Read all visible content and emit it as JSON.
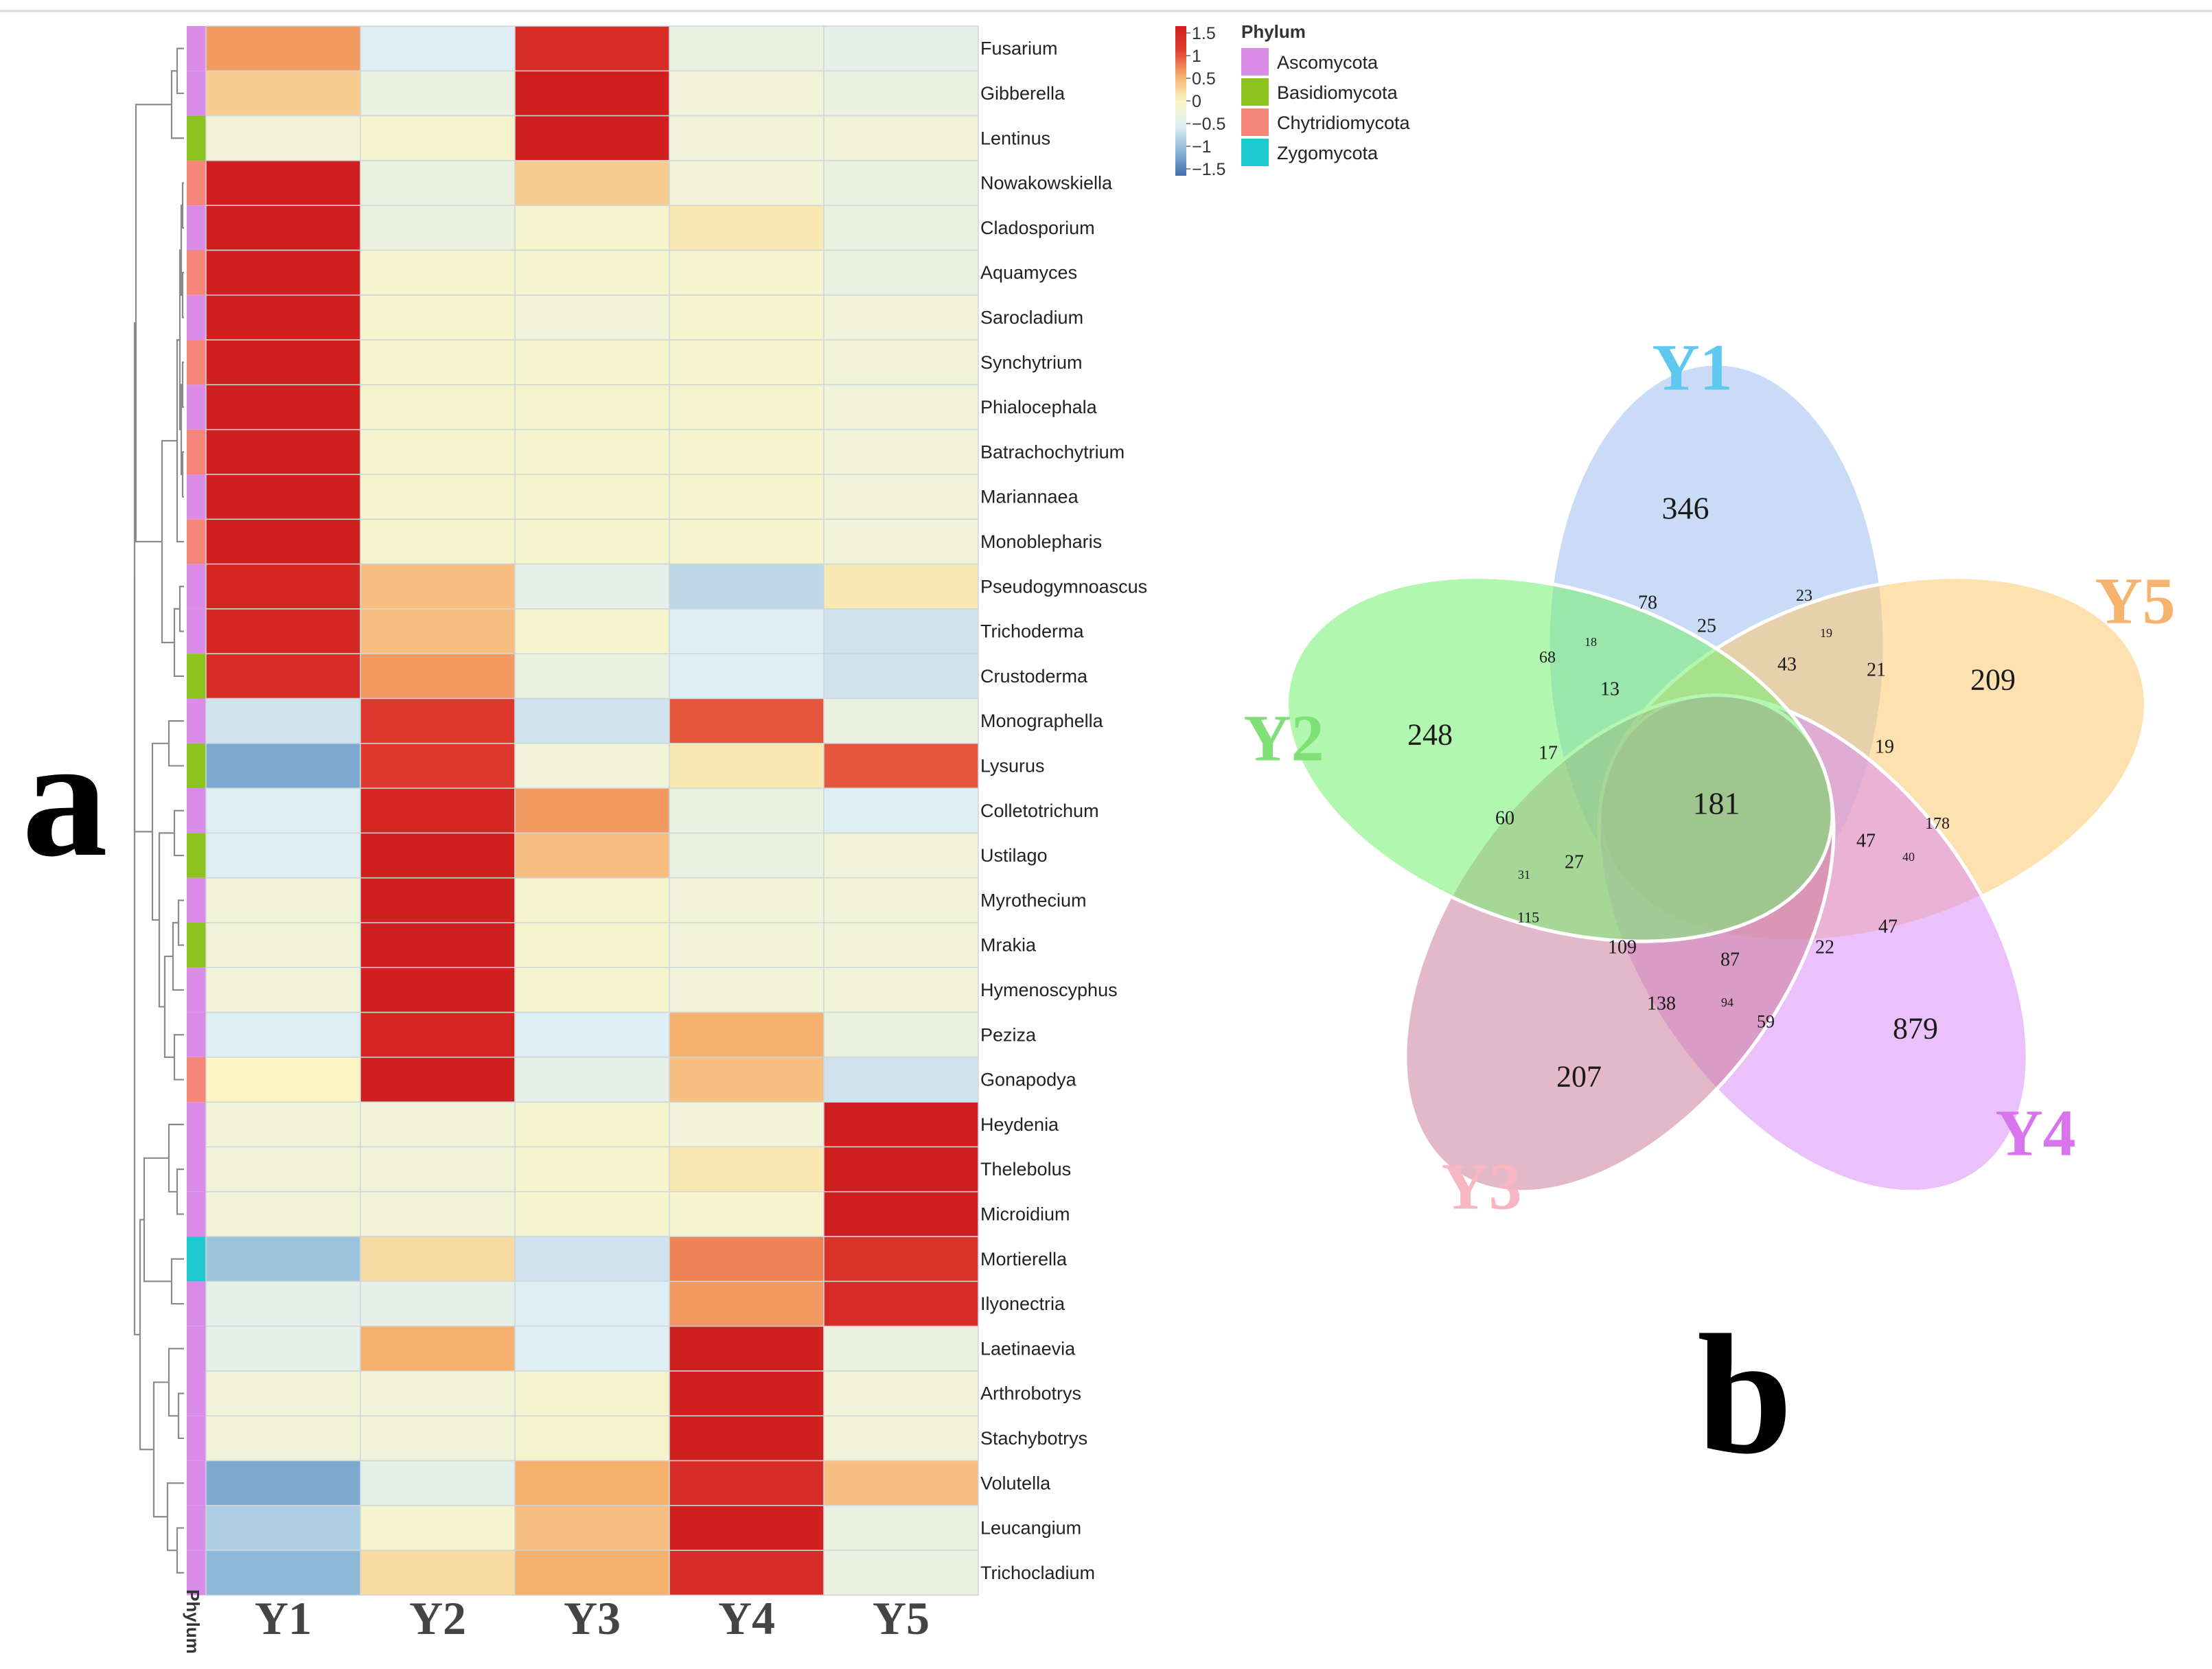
{
  "panels": {
    "a": "a",
    "b": "b"
  },
  "chart_data": [
    {
      "type": "heatmap",
      "title": "",
      "columns": [
        "Y1",
        "Y2",
        "Y3",
        "Y4",
        "Y5"
      ],
      "row_side_label": "Phylum",
      "rows": [
        {
          "genus": "Fusarium",
          "phylum": "Ascomycota",
          "values": [
            0.6,
            -0.5,
            1.3,
            -0.3,
            -0.4
          ]
        },
        {
          "genus": "Gibberella",
          "phylum": "Ascomycota",
          "values": [
            0.3,
            -0.3,
            1.5,
            -0.2,
            -0.3
          ]
        },
        {
          "genus": "Lentinus",
          "phylum": "Basidiomycota",
          "values": [
            -0.2,
            -0.1,
            1.5,
            -0.2,
            -0.2
          ]
        },
        {
          "genus": "Nowakowskiella",
          "phylum": "Chytridiomycota",
          "values": [
            1.5,
            -0.3,
            0.3,
            -0.2,
            -0.3
          ]
        },
        {
          "genus": "Cladosporium",
          "phylum": "Ascomycota",
          "values": [
            1.5,
            -0.3,
            -0.1,
            0.1,
            -0.3
          ]
        },
        {
          "genus": "Aquamyces",
          "phylum": "Chytridiomycota",
          "values": [
            1.5,
            -0.1,
            -0.1,
            -0.1,
            -0.3
          ]
        },
        {
          "genus": "Sarocladium",
          "phylum": "Ascomycota",
          "values": [
            1.5,
            -0.1,
            -0.2,
            -0.1,
            -0.2
          ]
        },
        {
          "genus": "Synchytrium",
          "phylum": "Chytridiomycota",
          "values": [
            1.5,
            -0.1,
            -0.1,
            -0.1,
            -0.2
          ]
        },
        {
          "genus": "Phialocephala",
          "phylum": "Ascomycota",
          "values": [
            1.5,
            -0.1,
            -0.1,
            -0.1,
            -0.2
          ]
        },
        {
          "genus": "Batrachochytrium",
          "phylum": "Chytridiomycota",
          "values": [
            1.5,
            -0.1,
            -0.1,
            -0.1,
            -0.2
          ]
        },
        {
          "genus": "Mariannaea",
          "phylum": "Ascomycota",
          "values": [
            1.5,
            -0.1,
            -0.1,
            -0.1,
            -0.2
          ]
        },
        {
          "genus": "Monoblepharis",
          "phylum": "Chytridiomycota",
          "values": [
            1.5,
            -0.1,
            -0.1,
            -0.1,
            -0.2
          ]
        },
        {
          "genus": "Pseudogymnoascus",
          "phylum": "Ascomycota",
          "values": [
            1.4,
            0.4,
            -0.4,
            -0.7,
            0.1
          ]
        },
        {
          "genus": "Trichoderma",
          "phylum": "Ascomycota",
          "values": [
            1.4,
            0.4,
            -0.1,
            -0.5,
            -0.6
          ]
        },
        {
          "genus": "Crustoderma",
          "phylum": "Basidiomycota",
          "values": [
            1.3,
            0.6,
            -0.3,
            -0.5,
            -0.6
          ]
        },
        {
          "genus": "Monographella",
          "phylum": "Ascomycota",
          "values": [
            -0.6,
            1.1,
            -0.6,
            0.9,
            -0.3
          ]
        },
        {
          "genus": "Lysurus",
          "phylum": "Basidiomycota",
          "values": [
            -1.1,
            1.1,
            -0.2,
            0.1,
            0.9
          ]
        },
        {
          "genus": "Colletotrichum",
          "phylum": "Ascomycota",
          "values": [
            -0.5,
            1.4,
            0.6,
            -0.3,
            -0.5
          ]
        },
        {
          "genus": "Ustilago",
          "phylum": "Basidiomycota",
          "values": [
            -0.5,
            1.5,
            0.4,
            -0.3,
            -0.2
          ]
        },
        {
          "genus": "Myrothecium",
          "phylum": "Ascomycota",
          "values": [
            -0.2,
            1.5,
            -0.1,
            -0.2,
            -0.2
          ]
        },
        {
          "genus": "Mrakia",
          "phylum": "Basidiomycota",
          "values": [
            -0.2,
            1.5,
            -0.1,
            -0.2,
            -0.2
          ]
        },
        {
          "genus": "Hymenoscyphus",
          "phylum": "Ascomycota",
          "values": [
            -0.2,
            1.5,
            -0.1,
            -0.2,
            -0.2
          ]
        },
        {
          "genus": "Peziza",
          "phylum": "Ascomycota",
          "values": [
            -0.5,
            1.4,
            -0.5,
            0.5,
            -0.3
          ]
        },
        {
          "genus": "Gonapodya",
          "phylum": "Chytridiomycota",
          "values": [
            0.0,
            1.5,
            -0.4,
            0.4,
            -0.6
          ]
        },
        {
          "genus": "Heydenia",
          "phylum": "Ascomycota",
          "values": [
            -0.2,
            -0.2,
            -0.1,
            -0.2,
            1.5
          ]
        },
        {
          "genus": "Thelebolus",
          "phylum": "Ascomycota",
          "values": [
            -0.2,
            -0.2,
            -0.1,
            0.1,
            1.5
          ]
        },
        {
          "genus": "Microidium",
          "phylum": "Ascomycota",
          "values": [
            -0.2,
            -0.2,
            -0.1,
            -0.1,
            1.5
          ]
        },
        {
          "genus": "Mortierella",
          "phylum": "Zygomycota",
          "values": [
            -0.9,
            0.2,
            -0.6,
            0.7,
            1.2
          ]
        },
        {
          "genus": "Ilyonectria",
          "phylum": "Ascomycota",
          "values": [
            -0.4,
            -0.4,
            -0.5,
            0.6,
            1.3
          ]
        },
        {
          "genus": "Laetinaevia",
          "phylum": "Ascomycota",
          "values": [
            -0.4,
            0.5,
            -0.5,
            1.5,
            -0.3
          ]
        },
        {
          "genus": "Arthrobotrys",
          "phylum": "Ascomycota",
          "values": [
            -0.2,
            -0.2,
            -0.1,
            1.5,
            -0.2
          ]
        },
        {
          "genus": "Stachybotrys",
          "phylum": "Ascomycota",
          "values": [
            -0.2,
            -0.2,
            -0.1,
            1.5,
            -0.2
          ]
        },
        {
          "genus": "Volutella",
          "phylum": "Ascomycota",
          "values": [
            -1.1,
            -0.4,
            0.5,
            1.3,
            0.4
          ]
        },
        {
          "genus": "Leucangium",
          "phylum": "Ascomycota",
          "values": [
            -0.8,
            -0.1,
            0.4,
            1.5,
            -0.3
          ]
        },
        {
          "genus": "Trichocladium",
          "phylum": "Ascomycota",
          "values": [
            -1.0,
            0.2,
            0.5,
            1.3,
            -0.3
          ]
        }
      ],
      "colorbar": {
        "ticks": [
          "1.5",
          "1",
          "0.5",
          "0",
          "−0.5",
          "−1",
          "−1.5"
        ],
        "range": [
          -1.5,
          1.5
        ],
        "stops": [
          "#3f6fae",
          "#8db8d8",
          "#dfeef4",
          "#fbf6c3",
          "#f6b06e",
          "#e2402f",
          "#cf1f1f"
        ]
      },
      "legend": {
        "title": "Phylum",
        "entries": [
          {
            "name": "Ascomycota",
            "color": "#d98de8"
          },
          {
            "name": "Basidiomycota",
            "color": "#8dc31e"
          },
          {
            "name": "Chytridiomycota",
            "color": "#f5877a"
          },
          {
            "name": "Zygomycota",
            "color": "#1ec8cf"
          }
        ]
      }
    },
    {
      "type": "venn",
      "title": "",
      "sets": [
        {
          "name": "Y1",
          "color": "#5ec8ee",
          "fill": "#9dbdf0"
        },
        {
          "name": "Y5",
          "color": "#f5b36e",
          "fill": "#fdc870"
        },
        {
          "name": "Y4",
          "color": "#d874ec",
          "fill": "#d98ef5"
        },
        {
          "name": "Y3",
          "color": "#f6b6c2",
          "fill": "#cc7e9a"
        },
        {
          "name": "Y2",
          "color": "#80e078",
          "fill": "#72f070"
        }
      ],
      "region_labels": [
        "346",
        "209",
        "879",
        "207",
        "248",
        "78",
        "23",
        "25",
        "19",
        "43",
        "21",
        "19",
        "178",
        "47",
        "40",
        "47",
        "22",
        "87",
        "94",
        "59",
        "138",
        "109",
        "115",
        "31",
        "27",
        "60",
        "17",
        "13",
        "68",
        "18",
        "181"
      ]
    }
  ]
}
